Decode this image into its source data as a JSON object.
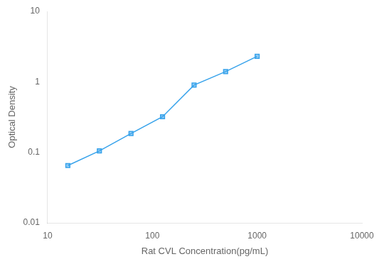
{
  "chart_data": {
    "type": "line",
    "x": [
      15.6,
      31.2,
      62.5,
      125,
      250,
      500,
      1000
    ],
    "values": [
      0.065,
      0.105,
      0.185,
      0.32,
      0.9,
      1.4,
      2.3
    ],
    "xlabel": "Rat CVL Concentration(pg/mL)",
    "ylabel": "Optical Density",
    "xlim": [
      10,
      10000
    ],
    "ylim": [
      0.01,
      10
    ],
    "xticks": [
      10,
      100,
      1000,
      10000
    ],
    "yticks": [
      0.01,
      0.1,
      1,
      10
    ],
    "log": true,
    "grid": false,
    "legend": false,
    "marker": "square"
  }
}
